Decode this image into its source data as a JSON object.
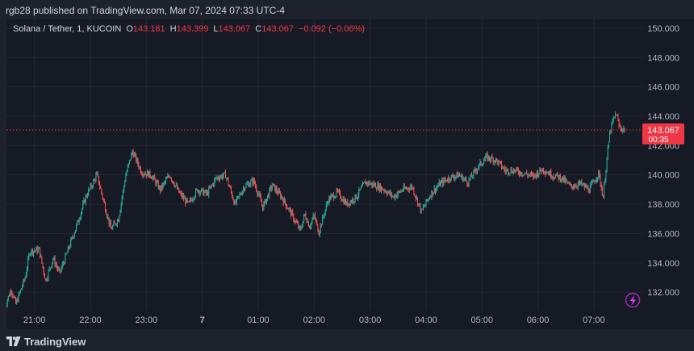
{
  "publisher_line": "rgb28 published on TradingView.com, Mar 07, 2024 07:33 UTC-4",
  "legend": {
    "symbol": "Solana / Tether, 1, KUCOIN",
    "open_label": "O",
    "open": "143.181",
    "high_label": "H",
    "high": "143.399",
    "low_label": "L",
    "low": "143.067",
    "close_label": "C",
    "close": "143.067",
    "change": "−0.092 (−0.06%)"
  },
  "price_tag": {
    "price": "143.067",
    "countdown": "00:35"
  },
  "brand": {
    "name": "TradingView",
    "icon": "tradingview-logo-icon"
  },
  "chart_icon": "lightning-icon",
  "colors": {
    "up": "#26a69a",
    "down": "#ef5350",
    "tag": "#f23645",
    "background": "#161a25",
    "grid": "#232733"
  },
  "chart_data": {
    "type": "candlestick",
    "title": "Solana / Tether, 1, KUCOIN",
    "x_tick_labels": [
      "21:00",
      "22:00",
      "23:00",
      "7",
      "01:00",
      "02:00",
      "03:00",
      "04:00",
      "05:00",
      "06:00",
      "07:00"
    ],
    "y_tick_labels": [
      "132.000",
      "134.000",
      "136.000",
      "138.000",
      "140.000",
      "142.000",
      "144.000",
      "146.000",
      "148.000",
      "150.000"
    ],
    "ylim": [
      130.8,
      150.6
    ],
    "xlim": [
      "20:30",
      "07:52"
    ],
    "grid": true,
    "last_price": 143.067,
    "series": [
      {
        "name": "",
        "time_start": "20:28",
        "interval_minutes": 1,
        "approx_close_path": [
          [
            "20:28",
            131.0
          ],
          [
            "20:35",
            132.2
          ],
          [
            "20:40",
            131.2
          ],
          [
            "20:50",
            133.0
          ],
          [
            "20:55",
            134.8
          ],
          [
            "21:05",
            134.9
          ],
          [
            "21:12",
            132.8
          ],
          [
            "21:20",
            134.3
          ],
          [
            "21:27",
            133.3
          ],
          [
            "21:35",
            134.7
          ],
          [
            "21:45",
            136.5
          ],
          [
            "21:55",
            138.5
          ],
          [
            "22:07",
            140.0
          ],
          [
            "22:15",
            138.0
          ],
          [
            "22:22",
            136.3
          ],
          [
            "22:30",
            137.0
          ],
          [
            "22:38",
            140.0
          ],
          [
            "22:45",
            141.6
          ],
          [
            "22:55",
            140.2
          ],
          [
            "23:05",
            140.0
          ],
          [
            "23:15",
            139.0
          ],
          [
            "23:25",
            140.0
          ],
          [
            "23:35",
            138.8
          ],
          [
            "23:45",
            138.0
          ],
          [
            "23:55",
            139.0
          ],
          [
            "00:05",
            138.7
          ],
          [
            "00:15",
            139.8
          ],
          [
            "00:25",
            140.0
          ],
          [
            "00:35",
            138.0
          ],
          [
            "00:45",
            139.2
          ],
          [
            "00:55",
            139.6
          ],
          [
            "01:05",
            137.8
          ],
          [
            "01:15",
            139.3
          ],
          [
            "01:25",
            138.5
          ],
          [
            "01:35",
            137.4
          ],
          [
            "01:45",
            136.2
          ],
          [
            "01:50",
            137.3
          ],
          [
            "01:55",
            136.5
          ],
          [
            "02:00",
            137.2
          ],
          [
            "02:05",
            136.1
          ],
          [
            "02:15",
            138.3
          ],
          [
            "02:25",
            138.8
          ],
          [
            "02:35",
            138.0
          ],
          [
            "02:45",
            138.5
          ],
          [
            "02:55",
            139.5
          ],
          [
            "03:05",
            139.3
          ],
          [
            "03:15",
            139.0
          ],
          [
            "03:25",
            138.5
          ],
          [
            "03:35",
            139.0
          ],
          [
            "03:45",
            139.2
          ],
          [
            "03:55",
            137.5
          ],
          [
            "04:05",
            138.7
          ],
          [
            "04:15",
            139.4
          ],
          [
            "04:25",
            139.8
          ],
          [
            "04:35",
            140.0
          ],
          [
            "04:45",
            139.5
          ],
          [
            "04:55",
            140.5
          ],
          [
            "05:05",
            141.2
          ],
          [
            "05:15",
            141.0
          ],
          [
            "05:25",
            140.3
          ],
          [
            "05:35",
            140.3
          ],
          [
            "05:45",
            140.1
          ],
          [
            "05:55",
            139.9
          ],
          [
            "06:05",
            140.4
          ],
          [
            "06:15",
            140.0
          ],
          [
            "06:25",
            139.8
          ],
          [
            "06:35",
            139.2
          ],
          [
            "06:45",
            139.4
          ],
          [
            "06:55",
            139.0
          ],
          [
            "07:05",
            140.1
          ],
          [
            "07:10",
            138.5
          ],
          [
            "07:13",
            140.5
          ],
          [
            "07:17",
            142.8
          ],
          [
            "07:20",
            143.6
          ],
          [
            "07:24",
            144.2
          ],
          [
            "07:27",
            143.3
          ],
          [
            "07:31",
            143.1
          ],
          [
            "07:33",
            143.067
          ]
        ]
      }
    ]
  }
}
